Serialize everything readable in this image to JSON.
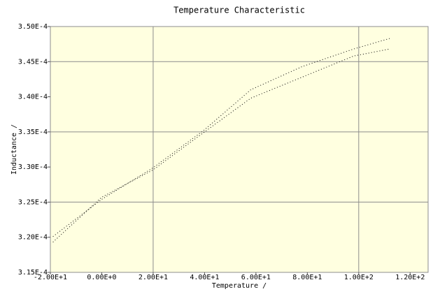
{
  "chart_data": {
    "type": "line",
    "title": "Temperature Characteristic",
    "x_label": "Temperature /",
    "y_label": "Inductance /",
    "xlim": [
      -20,
      127
    ],
    "ylim": [
      0.000315,
      0.00035
    ],
    "xticks": [
      {
        "value": -20,
        "label": "-2.00E+1"
      },
      {
        "value": 0,
        "label": "0.00E+0"
      },
      {
        "value": 20,
        "label": "2.00E+1"
      },
      {
        "value": 40,
        "label": "4.00E+1"
      },
      {
        "value": 60,
        "label": "6.00E+1"
      },
      {
        "value": 80,
        "label": "8.00E+1"
      },
      {
        "value": 100,
        "label": "1.00E+2"
      },
      {
        "value": 120,
        "label": "1.20E+2"
      }
    ],
    "yticks": [
      {
        "value": 0.000315,
        "label": "3.15E-4"
      },
      {
        "value": 0.00032,
        "label": "3.20E-4"
      },
      {
        "value": 0.000325,
        "label": "3.25E-4"
      },
      {
        "value": 0.00033,
        "label": "3.30E-4"
      },
      {
        "value": 0.000335,
        "label": "3.35E-4"
      },
      {
        "value": 0.00034,
        "label": "3.40E-4"
      },
      {
        "value": 0.000345,
        "label": "3.45E-4"
      },
      {
        "value": 0.00035,
        "label": "3.50E-4"
      }
    ],
    "x_grid": [
      20,
      100
    ],
    "y_grid": [
      0.000325,
      0.000335,
      0.000345
    ],
    "plot_background": "#ffffe0",
    "series": [
      {
        "color": "#000000",
        "x": [
          -19,
          0,
          20,
          40,
          58,
          78,
          98,
          112
        ],
        "values": [
          0.0003193,
          0.0003257,
          0.0003296,
          0.000335,
          0.0003398,
          0.0003428,
          0.0003458,
          0.0003468
        ]
      },
      {
        "color": "#000000",
        "x": [
          -19,
          0,
          20,
          40,
          58,
          78,
          98,
          112
        ],
        "values": [
          0.0003201,
          0.0003254,
          0.0003299,
          0.0003353,
          0.000341,
          0.0003443,
          0.0003468,
          0.0003483
        ]
      }
    ]
  }
}
